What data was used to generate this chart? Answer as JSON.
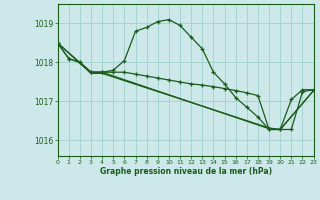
{
  "title": "Graphe pression niveau de la mer (hPa)",
  "bg_color": "#cce8e8",
  "grid_color": "#99cccc",
  "line_color": "#1a5c1a",
  "xlim": [
    0,
    23
  ],
  "ylim": [
    1015.6,
    1019.5
  ],
  "yticks": [
    1016,
    1017,
    1018,
    1019
  ],
  "xticks": [
    0,
    1,
    2,
    3,
    4,
    5,
    6,
    7,
    8,
    9,
    10,
    11,
    12,
    13,
    14,
    15,
    16,
    17,
    18,
    19,
    20,
    21,
    22,
    23
  ],
  "series1": [
    1018.5,
    1018.1,
    1018.0,
    1017.75,
    1017.75,
    1017.8,
    1018.05,
    1018.8,
    1018.9,
    1019.05,
    1019.1,
    1018.95,
    1018.65,
    1018.35,
    1017.75,
    1017.45,
    1017.1,
    1016.85,
    1016.6,
    1016.28,
    1016.28,
    1017.05,
    1017.3,
    1017.3
  ],
  "series2": [
    1018.5,
    1018.1,
    1018.0,
    1017.75,
    1017.75,
    1017.75,
    1017.75,
    1017.7,
    1017.65,
    1017.6,
    1017.55,
    1017.5,
    1017.45,
    1017.42,
    1017.38,
    1017.33,
    1017.28,
    1017.22,
    1017.15,
    1016.28,
    1016.28,
    1016.28,
    1017.25,
    1017.3
  ],
  "series3_x": [
    0,
    3,
    4,
    19,
    20,
    23
  ],
  "series3_y": [
    1018.5,
    1017.75,
    1017.75,
    1016.3,
    1016.28,
    1017.28
  ],
  "series4_x": [
    0,
    3,
    4,
    19,
    20,
    23
  ],
  "series4_y": [
    1018.5,
    1017.72,
    1017.72,
    1016.32,
    1016.28,
    1017.28
  ]
}
